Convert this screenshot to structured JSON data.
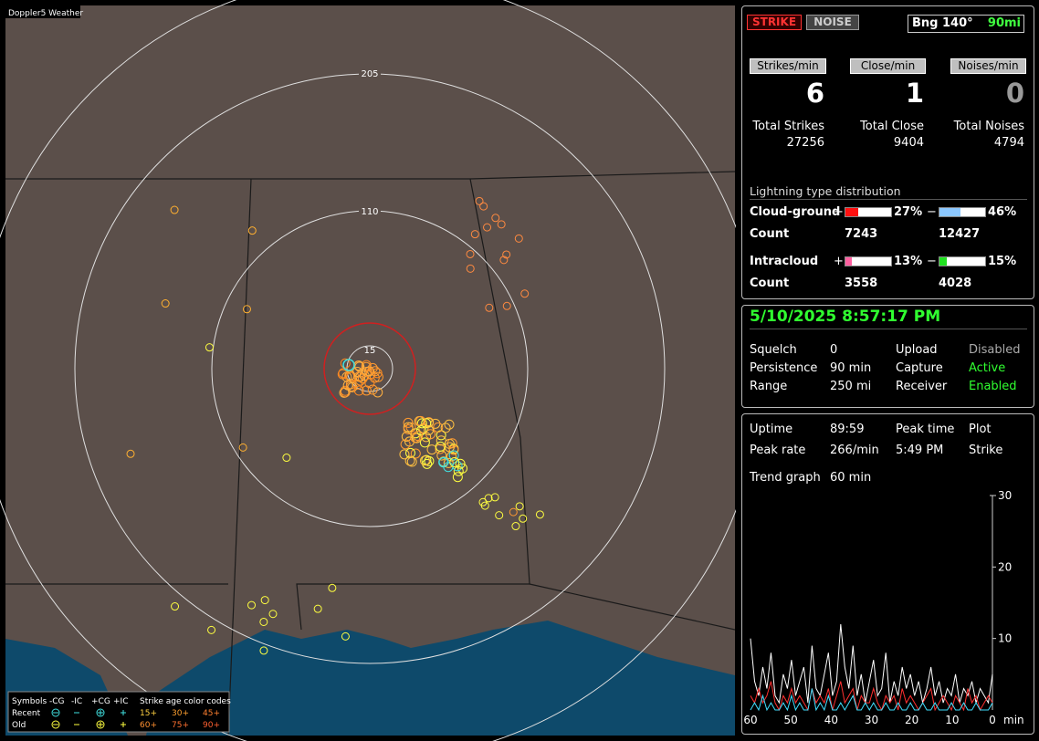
{
  "map": {
    "title": "Doppler5 Weather",
    "ring_labels": [
      "205",
      "110",
      "15"
    ],
    "legend": {
      "symbols": "Symbols",
      "types": [
        "-CG",
        "-IC",
        "+CG",
        "+IC"
      ],
      "age_title": "Strike age color codes",
      "rows": [
        "Recent",
        "Old"
      ],
      "recent_ages": [
        "15+",
        "30+",
        "45+"
      ],
      "old_ages": [
        "60+",
        "75+",
        "90+"
      ]
    }
  },
  "status": {
    "strike": "STRIKE",
    "noise": "NOISE",
    "bearing": "Bng 140°",
    "distance": "90mi"
  },
  "rates": [
    {
      "button": "Strikes/min",
      "value": 6,
      "total_label": "Total Strikes",
      "total": 27256
    },
    {
      "button": "Close/min",
      "value": 1,
      "total_label": "Total Close",
      "total": 9404
    },
    {
      "button": "Noises/min",
      "value": 0,
      "total_label": "Total Noises",
      "total": 4794
    }
  ],
  "distribution": {
    "title": "Lightning type distribution",
    "count_label": "Count",
    "rows": [
      {
        "name": "Cloud-ground",
        "plus_sign": "+",
        "minus_sign": "−",
        "plus": {
          "value": 27,
          "label": "27%"
        },
        "minus": {
          "value": 46,
          "label": "46%"
        },
        "plus_count": 7243,
        "minus_count": 12427
      },
      {
        "name": "Intracloud",
        "plus_sign": "+",
        "minus_sign": "−",
        "plus": {
          "value": 13,
          "label": "13%"
        },
        "minus": {
          "value": 15,
          "label": "15%"
        },
        "plus_count": 3558,
        "minus_count": 4028
      }
    ]
  },
  "receiver": {
    "datetime": "5/10/2025 8:57:17 PM",
    "rows": [
      [
        "Squelch",
        "0",
        "Upload",
        "Disabled"
      ],
      [
        "Persistence",
        "90 min",
        "Capture",
        "Active"
      ],
      [
        "Range",
        "250 mi",
        "Receiver",
        "Enabled"
      ]
    ]
  },
  "stats": {
    "rows": [
      [
        "Uptime",
        "89:59",
        "Peak time",
        "Plot"
      ],
      [
        "Peak rate",
        "266/min",
        "5:49 PM",
        "Strike"
      ]
    ],
    "trend_label": "Trend graph",
    "trend_window": "60 min"
  },
  "trend": {
    "xlim": [
      60,
      0
    ],
    "ylim": [
      0,
      30
    ],
    "xticks": [
      60,
      50,
      40,
      30,
      20,
      10,
      0
    ],
    "yticks": [
      10,
      20,
      30
    ],
    "x_unit": "min",
    "series": [
      {
        "color": "#ffffff",
        "values": [
          10,
          4,
          2,
          6,
          3,
          8,
          2,
          1,
          5,
          3,
          7,
          2,
          4,
          6,
          1,
          9,
          3,
          2,
          5,
          8,
          2,
          4,
          12,
          6,
          3,
          9,
          2,
          5,
          1,
          4,
          7,
          2,
          3,
          8,
          1,
          4,
          2,
          6,
          3,
          5,
          2,
          4,
          1,
          3,
          6,
          2,
          4,
          1,
          3,
          2,
          5,
          1,
          3,
          2,
          4,
          1,
          3,
          2,
          1,
          5
        ]
      },
      {
        "color": "#ff3030",
        "values": [
          2,
          1,
          3,
          1,
          2,
          4,
          1,
          0,
          2,
          1,
          3,
          1,
          2,
          1,
          0,
          3,
          1,
          2,
          1,
          3,
          0,
          2,
          4,
          1,
          2,
          3,
          0,
          2,
          1,
          1,
          3,
          1,
          0,
          2,
          1,
          2,
          0,
          3,
          1,
          2,
          1,
          0,
          1,
          2,
          3,
          0,
          1,
          2,
          1,
          0,
          2,
          1,
          0,
          3,
          1,
          2,
          0,
          1,
          2,
          1
        ]
      },
      {
        "color": "#40e0ff",
        "values": [
          0,
          1,
          0,
          2,
          0,
          1,
          0,
          0,
          1,
          0,
          2,
          0,
          1,
          0,
          0,
          3,
          0,
          1,
          0,
          2,
          0,
          0,
          1,
          0,
          1,
          2,
          0,
          0,
          1,
          0,
          1,
          0,
          0,
          1,
          0,
          0,
          1,
          0,
          0,
          1,
          0,
          0,
          1,
          0,
          0,
          1,
          0,
          0,
          0,
          1,
          0,
          0,
          1,
          0,
          0,
          1,
          0,
          0,
          0,
          1
        ]
      }
    ]
  }
}
